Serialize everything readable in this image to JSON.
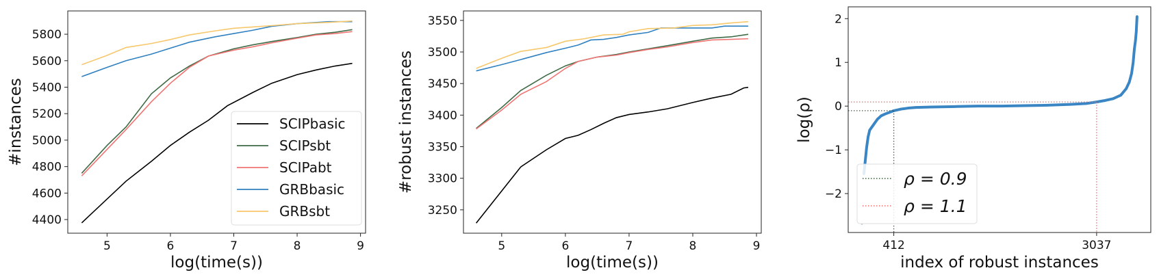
{
  "chart_data": [
    {
      "type": "line",
      "xlabel": "log(time(s))",
      "ylabel": "#instances",
      "xlim": [
        4.38,
        9.08
      ],
      "ylim": [
        4297,
        5976
      ],
      "xticks": [
        5,
        6,
        7,
        8,
        9
      ],
      "yticks": [
        4400,
        4600,
        4800,
        5000,
        5200,
        5400,
        5600,
        5800
      ],
      "grid": false,
      "legend_position": "lower-right",
      "series": [
        {
          "name": "SCIPbasic",
          "color": "#000000",
          "x": [
            4.6,
            5.3,
            5.7,
            6.0,
            6.3,
            6.6,
            6.9,
            7.3,
            7.6,
            8.0,
            8.3,
            8.6,
            8.87
          ],
          "y": [
            4375,
            4690,
            4840,
            4960,
            5060,
            5150,
            5260,
            5360,
            5430,
            5495,
            5530,
            5560,
            5580
          ]
        },
        {
          "name": "SCIPsbt",
          "color": "#3d6a45",
          "x": [
            4.6,
            5.0,
            5.3,
            5.7,
            6.0,
            6.3,
            6.6,
            7.0,
            7.3,
            7.6,
            8.0,
            8.3,
            8.6,
            8.87
          ],
          "y": [
            4750,
            4960,
            5100,
            5350,
            5470,
            5560,
            5635,
            5690,
            5720,
            5745,
            5775,
            5800,
            5815,
            5835
          ]
        },
        {
          "name": "SCIPabt",
          "color": "#f07474",
          "x": [
            4.6,
            5.3,
            5.7,
            6.0,
            6.3,
            6.6,
            7.0,
            7.3,
            7.6,
            8.0,
            8.3,
            8.6,
            8.87
          ],
          "y": [
            4730,
            5080,
            5290,
            5430,
            5550,
            5635,
            5680,
            5705,
            5735,
            5770,
            5795,
            5805,
            5820
          ]
        },
        {
          "name": "GRBbasic",
          "color": "#2f80c0",
          "x": [
            4.6,
            5.0,
            5.3,
            5.7,
            6.0,
            6.3,
            6.7,
            7.0,
            7.3,
            7.6,
            8.0,
            8.5,
            8.87
          ],
          "y": [
            5480,
            5550,
            5600,
            5650,
            5695,
            5740,
            5780,
            5805,
            5830,
            5860,
            5880,
            5895,
            5895
          ]
        },
        {
          "name": "GRBsbt",
          "color": "#f7c76b",
          "x": [
            4.6,
            5.0,
            5.3,
            5.7,
            6.0,
            6.3,
            6.7,
            7.0,
            7.3,
            7.6,
            8.0,
            8.5,
            8.87
          ],
          "y": [
            5570,
            5640,
            5700,
            5730,
            5760,
            5795,
            5825,
            5845,
            5855,
            5865,
            5880,
            5890,
            5900
          ]
        }
      ]
    },
    {
      "type": "line",
      "xlabel": "log(time(s))",
      "ylabel": "#robust instances",
      "xlim": [
        4.4,
        9.075
      ],
      "ylim": [
        3213,
        3565
      ],
      "xticks": [
        5,
        6,
        7,
        8,
        9
      ],
      "yticks": [
        3250,
        3300,
        3350,
        3400,
        3450,
        3500,
        3550
      ],
      "grid": false,
      "series": [
        {
          "color": "#000000",
          "x": [
            4.6,
            5.3,
            5.7,
            6.0,
            6.2,
            6.4,
            6.6,
            6.8,
            7.0,
            7.3,
            7.6,
            7.8,
            8.0,
            8.3,
            8.6,
            8.8,
            8.87
          ],
          "y": [
            3229,
            3318,
            3345,
            3363,
            3368,
            3377,
            3387,
            3396,
            3401,
            3405,
            3410,
            3415,
            3420,
            3427,
            3433,
            3443,
            3444
          ]
        },
        {
          "color": "#3d6a45",
          "x": [
            4.6,
            5.0,
            5.3,
            5.7,
            6.0,
            6.2,
            6.5,
            6.8,
            7.0,
            7.3,
            7.6,
            8.0,
            8.3,
            8.6,
            8.87
          ],
          "y": [
            3379,
            3412,
            3439,
            3463,
            3478,
            3485,
            3492,
            3496,
            3500,
            3505,
            3510,
            3517,
            3522,
            3524,
            3528
          ]
        },
        {
          "color": "#f07474",
          "x": [
            4.6,
            5.0,
            5.3,
            5.7,
            6.0,
            6.2,
            6.5,
            6.8,
            7.0,
            7.3,
            7.6,
            8.0,
            8.3,
            8.6,
            8.87
          ],
          "y": [
            3378,
            3408,
            3433,
            3453,
            3474,
            3485,
            3492,
            3495,
            3499,
            3504,
            3508,
            3515,
            3519,
            3520,
            3521
          ]
        },
        {
          "color": "#2f80c0",
          "x": [
            4.6,
            5.0,
            5.3,
            5.7,
            6.0,
            6.2,
            6.4,
            6.6,
            6.8,
            7.0,
            7.3,
            7.5,
            8.0,
            8.3,
            8.5,
            8.87
          ],
          "y": [
            3470,
            3480,
            3488,
            3499,
            3506,
            3511,
            3519,
            3520,
            3523,
            3527,
            3531,
            3538,
            3538,
            3538,
            3541,
            3541
          ]
        },
        {
          "color": "#f7c76b",
          "x": [
            4.6,
            5.0,
            5.3,
            5.7,
            6.0,
            6.3,
            6.6,
            6.9,
            7.0,
            7.3,
            7.7,
            8.0,
            8.3,
            8.6,
            8.87
          ],
          "y": [
            3474,
            3490,
            3501,
            3507,
            3517,
            3521,
            3527,
            3528,
            3532,
            3537,
            3538,
            3542,
            3543,
            3546,
            3548
          ]
        }
      ]
    },
    {
      "type": "scatter",
      "xlabel": "index of robust instances",
      "ylabel": "log(ρ)",
      "xlim": [
        -178,
        3738
      ],
      "ylim": [
        -2.89,
        2.27
      ],
      "xticks": [
        412,
        3037
      ],
      "yticks": [
        2,
        1,
        0,
        -1,
        -2
      ],
      "ytick_labels": [
        "2",
        "1",
        "0",
        "−1",
        "−2"
      ],
      "grid": false,
      "legend_position": "lower-left",
      "color": "#3a86c4",
      "points": {
        "x": [
          0,
          25,
          40,
          60,
          80,
          100,
          140,
          200,
          250,
          300,
          360,
          412,
          500,
          600,
          700,
          900,
          1200,
          1500,
          1800,
          2100,
          2400,
          2700,
          2900,
          3037,
          3150,
          3250,
          3350,
          3420,
          3460,
          3490,
          3510,
          3525,
          3540,
          3550,
          3560
        ],
        "y": [
          -2.7,
          -1.55,
          -1.3,
          -0.95,
          -0.7,
          -0.55,
          -0.45,
          -0.3,
          -0.22,
          -0.18,
          -0.14,
          -0.105,
          -0.07,
          -0.045,
          -0.03,
          -0.02,
          -0.01,
          0.0,
          0.0,
          0.01,
          0.02,
          0.04,
          0.06,
          0.095,
          0.13,
          0.17,
          0.25,
          0.4,
          0.55,
          0.75,
          1.0,
          1.3,
          1.5,
          1.7,
          2.05
        ]
      },
      "reference_lines": [
        {
          "label": "ρ = 0.9",
          "rho": 0.9,
          "log_rho": -0.105,
          "index": 412,
          "color": "#3d5e40"
        },
        {
          "label": "ρ = 1.1",
          "rho": 1.1,
          "log_rho": 0.095,
          "index": 3037,
          "color": "#f06a6a"
        }
      ]
    }
  ]
}
